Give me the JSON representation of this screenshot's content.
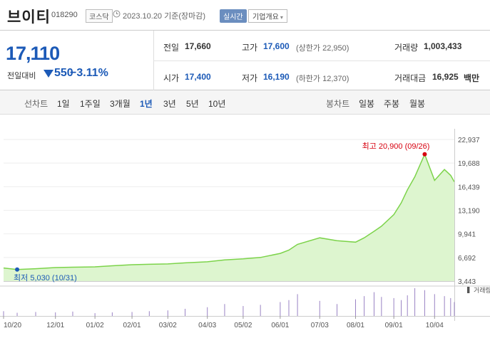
{
  "header": {
    "name": "브이티",
    "code": "018290",
    "market": "코스닥",
    "date": "2023.10.20 기준(장마감)",
    "realtime_label": "실시간",
    "company_label": "기업개요",
    "company_caret": "▾"
  },
  "summary": {
    "price": "17,110",
    "change_label": "전일대비",
    "change": "550",
    "change_pct": "−3.11%",
    "prev_label": "전일",
    "prev": "17,660",
    "high_label": "고가",
    "high": "17,600",
    "upper_limit": "(상한가 22,950)",
    "volume_label": "거래량",
    "volume": "1,003,433",
    "open_label": "시가",
    "open": "17,400",
    "low_label": "저가",
    "low": "16,190",
    "lower_limit": "(하한가 12,370)",
    "amount_label": "거래대금",
    "amount": "16,925",
    "amount_unit": "백만"
  },
  "tabs": {
    "line_label": "선차트",
    "line": [
      "1일",
      "1주일",
      "3개월",
      "1년",
      "3년",
      "5년",
      "10년"
    ],
    "active": "1년",
    "candle_label": "봉차트",
    "candle": [
      "일봉",
      "주봉",
      "월봉"
    ]
  },
  "colors": {
    "blue": "#1c5ab7",
    "line": "#7cd34a",
    "fill": "#ddf5cf",
    "high": "#d7000f",
    "low": "#1c5ab7",
    "volume": "#9a83c4"
  },
  "chart_data": {
    "type": "area",
    "x_ticks": [
      "10/20",
      "12/01",
      "01/02",
      "02/01",
      "03/02",
      "04/03",
      "05/02",
      "06/01",
      "07/03",
      "08/01",
      "09/01",
      "10/04"
    ],
    "y_ticks": [
      "22,937",
      "19,688",
      "16,439",
      "13,190",
      "9,941",
      "6,692",
      "3,443"
    ],
    "ylim": [
      3443,
      22937
    ],
    "high_label": "최고 20,900 (09/26)",
    "low_label": "최저 5,030 (10/31)",
    "volume_label": "거래량",
    "x": [
      "2022-10-20",
      "2022-10-31",
      "2022-11-15",
      "2022-12-01",
      "2022-12-15",
      "2023-01-02",
      "2023-01-16",
      "2023-02-01",
      "2023-02-15",
      "2023-03-02",
      "2023-03-16",
      "2023-04-03",
      "2023-04-17",
      "2023-05-02",
      "2023-05-16",
      "2023-06-01",
      "2023-06-08",
      "2023-06-15",
      "2023-07-03",
      "2023-07-17",
      "2023-08-01",
      "2023-08-08",
      "2023-08-16",
      "2023-08-22",
      "2023-09-01",
      "2023-09-07",
      "2023-09-12",
      "2023-09-18",
      "2023-09-26",
      "2023-10-04",
      "2023-10-12",
      "2023-10-17",
      "2023-10-20"
    ],
    "values": [
      5250,
      5030,
      5150,
      5300,
      5350,
      5400,
      5550,
      5700,
      5750,
      5800,
      5950,
      6100,
      6350,
      6500,
      6700,
      7250,
      7700,
      8500,
      9400,
      9000,
      8800,
      9400,
      10300,
      11000,
      12600,
      14200,
      16000,
      17800,
      20900,
      17300,
      18800,
      18000,
      17110
    ],
    "volume": [
      12,
      8,
      10,
      9,
      11,
      7,
      9,
      10,
      12,
      14,
      18,
      22,
      30,
      25,
      28,
      35,
      40,
      55,
      38,
      30,
      42,
      50,
      60,
      48,
      45,
      40,
      52,
      70,
      65,
      55,
      50,
      45,
      35
    ]
  }
}
